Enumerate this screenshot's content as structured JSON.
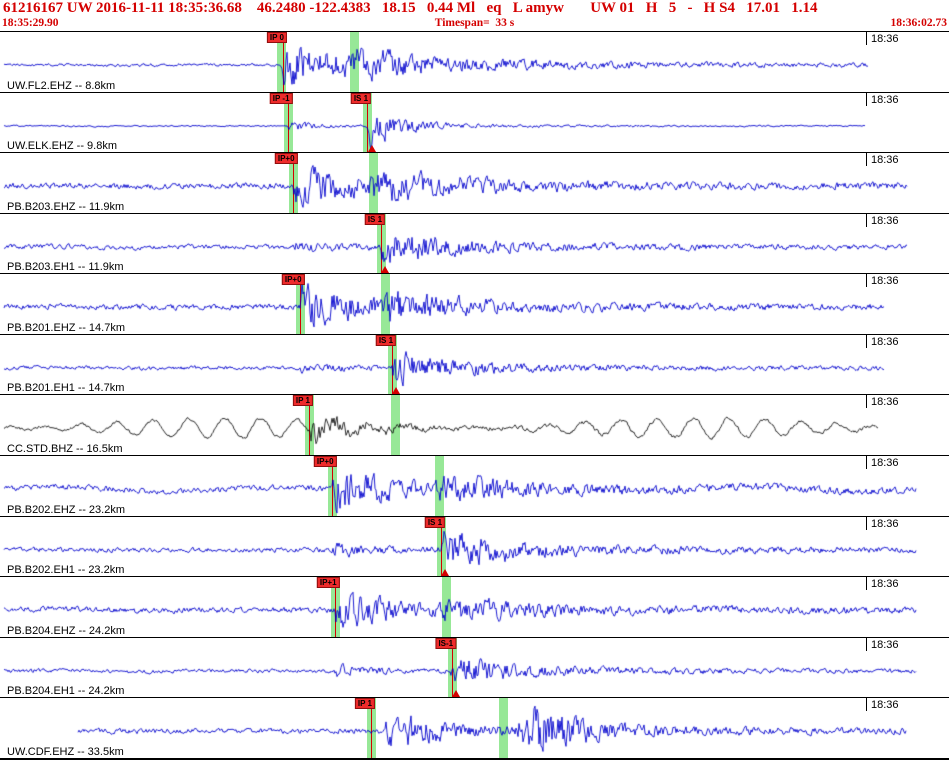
{
  "header": {
    "line1": "61216167 UW 2016-11-11 18:35:36.68    46.2480 -122.4383   18.15   0.44 Ml   eq   L amyw       UW 01   H   5   -   H S4   17.01   1.14",
    "start_time": "18:35:29.90",
    "timespan": "Timespan=  33 s",
    "end_time": "18:36:02.73"
  },
  "time_tick": {
    "label": "18:36",
    "frac": 0.9126
  },
  "colors": {
    "header_red": "#d40000",
    "pick_red": "#d40000",
    "pick_flag": "#ee2b2b",
    "pick_band": "#97e897",
    "trace_blue": "#0000cd",
    "trace_black": "#141414"
  },
  "traces": [
    {
      "station": "UW.FL2.EHZ -- 8.8km",
      "color": "blue",
      "start": 0.004,
      "end": 0.915,
      "noise": 1.3,
      "lp": {
        "amp": 0.5,
        "period": 160,
        "mod": 520,
        "phase": 0.4
      },
      "bursts": [
        {
          "x": 0.3,
          "amp": 16,
          "attack": 3,
          "decay": 90
        },
        {
          "x": 0.375,
          "amp": 5,
          "attack": 6,
          "decay": 80
        }
      ],
      "bands": [
        0.2961,
        0.3731
      ],
      "picks": [
        {
          "label": "IP 0",
          "x": 0.298
        }
      ],
      "triangles": []
    },
    {
      "station": "UW.ELK.EHZ -- 9.8km",
      "color": "blue",
      "start": 0.004,
      "end": 0.912,
      "noise": 0.7,
      "lp": {
        "amp": 0.3,
        "period": 140,
        "mod": 480,
        "phase": 1.1
      },
      "bursts": [
        {
          "x": 0.304,
          "amp": 4.5,
          "attack": 2,
          "decay": 22
        },
        {
          "x": 0.389,
          "amp": 16,
          "attack": 2,
          "decay": 26
        }
      ],
      "bands": [
        0.3035,
        0.3868
      ],
      "picks": [
        {
          "label": "IP -1",
          "x": 0.3035
        },
        {
          "label": "IS 1",
          "x": 0.3868
        }
      ],
      "triangles": [
        0.392
      ]
    },
    {
      "station": "PB.B203.EHZ -- 11.9km",
      "color": "blue",
      "start": 0.004,
      "end": 0.956,
      "noise": 2.8,
      "lp": {
        "amp": 1.2,
        "period": 200,
        "mod": 560,
        "phase": 2.0
      },
      "bursts": [
        {
          "x": 0.311,
          "amp": 15,
          "attack": 2,
          "decay": 60
        },
        {
          "x": 0.394,
          "amp": 8,
          "attack": 4,
          "decay": 70
        }
      ],
      "bands": [
        0.3088,
        0.3931
      ],
      "picks": [
        {
          "label": "IP+0",
          "x": 0.3088
        }
      ],
      "triangles": []
    },
    {
      "station": "PB.B203.EH1 -- 11.9km",
      "color": "blue",
      "start": 0.004,
      "end": 0.956,
      "noise": 2.2,
      "lp": {
        "amp": 0.8,
        "period": 180,
        "mod": 500,
        "phase": 0.2
      },
      "bursts": [
        {
          "x": 0.311,
          "amp": 3,
          "attack": 3,
          "decay": 40
        },
        {
          "x": 0.403,
          "amp": 13,
          "attack": 3,
          "decay": 60
        }
      ],
      "bands": [
        0.4015
      ],
      "picks": [
        {
          "label": "IS 1",
          "x": 0.4015
        }
      ],
      "triangles": [
        0.4057
      ]
    },
    {
      "station": "PB.B201.EHZ -- 14.7km",
      "color": "blue",
      "start": 0.004,
      "end": 0.932,
      "noise": 2.6,
      "lp": {
        "amp": 1.0,
        "period": 210,
        "mod": 640,
        "phase": 2.8
      },
      "bursts": [
        {
          "x": 0.318,
          "amp": 17,
          "attack": 2,
          "decay": 50
        },
        {
          "x": 0.407,
          "amp": 9,
          "attack": 4,
          "decay": 60
        }
      ],
      "bands": [
        0.3161,
        0.4057
      ],
      "picks": [
        {
          "label": "IP+0",
          "x": 0.3161
        }
      ],
      "triangles": []
    },
    {
      "station": "PB.B201.EH1 -- 14.7km",
      "color": "blue",
      "start": 0.004,
      "end": 0.932,
      "noise": 1.8,
      "lp": {
        "amp": 0.6,
        "period": 190,
        "mod": 520,
        "phase": 1.6
      },
      "bursts": [
        {
          "x": 0.318,
          "amp": 3,
          "attack": 3,
          "decay": 30
        },
        {
          "x": 0.415,
          "amp": 13,
          "attack": 3,
          "decay": 55
        }
      ],
      "bands": [
        0.4131
      ],
      "picks": [
        {
          "label": "IS 1",
          "x": 0.4131
        }
      ],
      "triangles": [
        0.4173
      ]
    },
    {
      "station": "CC.STD.BHZ -- 16.5km",
      "color": "black",
      "start": 0.004,
      "end": 0.925,
      "noise": 1.4,
      "lp": {
        "amp": 10,
        "period": 36,
        "mod": 470,
        "phase": -1.5
      },
      "bursts": [
        {
          "x": 0.327,
          "amp": 9,
          "attack": 2,
          "decay": 45
        }
      ],
      "bands": [
        0.3256,
        0.4162
      ],
      "picks": [
        {
          "label": "IP 1",
          "x": 0.3256
        }
      ],
      "triangles": []
    },
    {
      "station": "PB.B202.EHZ -- 23.2km",
      "color": "blue",
      "start": 0.004,
      "end": 0.965,
      "noise": 2.6,
      "lp": {
        "amp": 2.5,
        "period": 230,
        "mod": 700,
        "phase": 0.6
      },
      "bursts": [
        {
          "x": 0.352,
          "amp": 15,
          "attack": 2,
          "decay": 55
        },
        {
          "x": 0.464,
          "amp": 7,
          "attack": 5,
          "decay": 80
        }
      ],
      "bands": [
        0.3498,
        0.4626
      ],
      "picks": [
        {
          "label": "IP+0",
          "x": 0.3498
        }
      ],
      "triangles": []
    },
    {
      "station": "PB.B202.EH1 -- 23.2km",
      "color": "blue",
      "start": 0.004,
      "end": 0.965,
      "noise": 2.2,
      "lp": {
        "amp": 0.8,
        "period": 200,
        "mod": 560,
        "phase": 2.4
      },
      "bursts": [
        {
          "x": 0.352,
          "amp": 4,
          "attack": 3,
          "decay": 40
        },
        {
          "x": 0.468,
          "amp": 14,
          "attack": 4,
          "decay": 70
        }
      ],
      "bands": [
        0.4647
      ],
      "picks": [
        {
          "label": "IS 1",
          "x": 0.4647
        }
      ],
      "triangles": [
        0.4689
      ]
    },
    {
      "station": "PB.B204.EHZ -- 24.2km",
      "color": "blue",
      "start": 0.004,
      "end": 0.965,
      "noise": 2.6,
      "lp": {
        "amp": 1.2,
        "period": 220,
        "mod": 600,
        "phase": 1.0
      },
      "bursts": [
        {
          "x": 0.355,
          "amp": 14,
          "attack": 2,
          "decay": 55
        },
        {
          "x": 0.47,
          "amp": 7,
          "attack": 5,
          "decay": 70
        }
      ],
      "bands": [
        0.353,
        0.47
      ],
      "picks": [
        {
          "label": "IP+1",
          "x": 0.353
        }
      ],
      "triangles": []
    },
    {
      "station": "PB.B204.EH1 -- 24.2km",
      "color": "blue",
      "start": 0.004,
      "end": 0.965,
      "noise": 1.8,
      "lp": {
        "amp": 0.6,
        "period": 180,
        "mod": 520,
        "phase": 0.0
      },
      "bursts": [
        {
          "x": 0.355,
          "amp": 4,
          "attack": 3,
          "decay": 30
        },
        {
          "x": 0.478,
          "amp": 11,
          "attack": 4,
          "decay": 60
        }
      ],
      "bands": [
        0.4763
      ],
      "picks": [
        {
          "label": "IS-1",
          "x": 0.4763
        }
      ],
      "triangles": [
        0.4805
      ]
    },
    {
      "station": "UW.CDF.EHZ -- 33.5km",
      "color": "blue",
      "start": 0.082,
      "end": 0.955,
      "noise": 2.4,
      "lp": {
        "amp": 0.8,
        "period": 210,
        "mod": 560,
        "phase": 1.9
      },
      "bursts": [
        {
          "x": 0.408,
          "amp": 13,
          "attack": 3,
          "decay": 30
        },
        {
          "x": 0.432,
          "amp": 6,
          "attack": 4,
          "decay": 40
        },
        {
          "x": 0.545,
          "amp": 9,
          "attack": 3,
          "decay": 35
        },
        {
          "x": 0.558,
          "amp": 15,
          "attack": 3,
          "decay": 45
        }
      ],
      "bands": [
        0.3909,
        0.53
      ],
      "picks": [
        {
          "label": "IP 1",
          "x": 0.3909
        }
      ],
      "triangles": []
    }
  ]
}
